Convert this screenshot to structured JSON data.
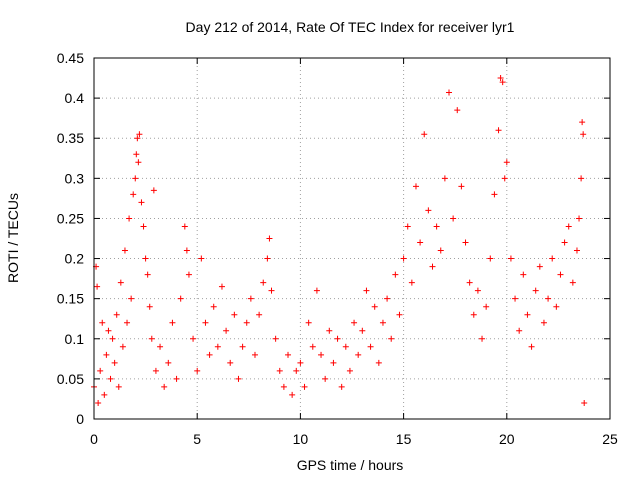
{
  "chart_data": {
    "type": "scatter",
    "title": "Day 212 of 2014, Rate Of TEC Index for receiver lyr1",
    "xlabel": "GPS time / hours",
    "ylabel": "ROTI / TECUs",
    "xlim": [
      0,
      25
    ],
    "ylim": [
      0,
      0.45
    ],
    "xticks": [
      "0",
      "5",
      "10",
      "15",
      "20",
      "25"
    ],
    "yticks": [
      "0",
      "0.05",
      "0.1",
      "0.15",
      "0.2",
      "0.25",
      "0.3",
      "0.35",
      "0.4",
      "0.45"
    ],
    "grid": true,
    "marker": "+",
    "color": "#ff0000",
    "series": [
      {
        "points": [
          [
            0.0,
            0.04
          ],
          [
            0.1,
            0.19
          ],
          [
            0.15,
            0.165
          ],
          [
            0.2,
            0.02
          ],
          [
            0.3,
            0.06
          ],
          [
            0.4,
            0.12
          ],
          [
            0.5,
            0.03
          ],
          [
            0.6,
            0.08
          ],
          [
            0.7,
            0.11
          ],
          [
            0.8,
            0.05
          ],
          [
            0.9,
            0.1
          ],
          [
            1.0,
            0.07
          ],
          [
            1.1,
            0.13
          ],
          [
            1.2,
            0.04
          ],
          [
            1.3,
            0.17
          ],
          [
            1.4,
            0.09
          ],
          [
            1.5,
            0.21
          ],
          [
            1.6,
            0.12
          ],
          [
            1.7,
            0.25
          ],
          [
            1.8,
            0.15
          ],
          [
            1.9,
            0.28
          ],
          [
            2.0,
            0.3
          ],
          [
            2.05,
            0.33
          ],
          [
            2.1,
            0.35
          ],
          [
            2.15,
            0.32
          ],
          [
            2.2,
            0.355
          ],
          [
            2.3,
            0.27
          ],
          [
            2.4,
            0.24
          ],
          [
            2.5,
            0.2
          ],
          [
            2.6,
            0.18
          ],
          [
            2.7,
            0.14
          ],
          [
            2.8,
            0.1
          ],
          [
            2.9,
            0.285
          ],
          [
            3.0,
            0.06
          ],
          [
            3.2,
            0.09
          ],
          [
            3.4,
            0.04
          ],
          [
            3.6,
            0.07
          ],
          [
            3.8,
            0.12
          ],
          [
            4.0,
            0.05
          ],
          [
            4.2,
            0.15
          ],
          [
            4.4,
            0.24
          ],
          [
            4.5,
            0.21
          ],
          [
            4.6,
            0.18
          ],
          [
            4.8,
            0.1
          ],
          [
            5.0,
            0.06
          ],
          [
            5.2,
            0.2
          ],
          [
            5.4,
            0.12
          ],
          [
            5.6,
            0.08
          ],
          [
            5.8,
            0.14
          ],
          [
            6.0,
            0.09
          ],
          [
            6.2,
            0.165
          ],
          [
            6.4,
            0.11
          ],
          [
            6.6,
            0.07
          ],
          [
            6.8,
            0.13
          ],
          [
            7.0,
            0.05
          ],
          [
            7.2,
            0.09
          ],
          [
            7.4,
            0.12
          ],
          [
            7.6,
            0.15
          ],
          [
            7.8,
            0.08
          ],
          [
            8.0,
            0.13
          ],
          [
            8.2,
            0.17
          ],
          [
            8.4,
            0.2
          ],
          [
            8.5,
            0.225
          ],
          [
            8.6,
            0.16
          ],
          [
            8.8,
            0.1
          ],
          [
            9.0,
            0.06
          ],
          [
            9.2,
            0.04
          ],
          [
            9.4,
            0.08
          ],
          [
            9.6,
            0.03
          ],
          [
            9.8,
            0.06
          ],
          [
            10.0,
            0.07
          ],
          [
            10.2,
            0.04
          ],
          [
            10.4,
            0.12
          ],
          [
            10.6,
            0.09
          ],
          [
            10.8,
            0.16
          ],
          [
            11.0,
            0.08
          ],
          [
            11.2,
            0.05
          ],
          [
            11.4,
            0.11
          ],
          [
            11.6,
            0.07
          ],
          [
            11.8,
            0.1
          ],
          [
            12.0,
            0.04
          ],
          [
            12.2,
            0.09
          ],
          [
            12.4,
            0.06
          ],
          [
            12.6,
            0.12
          ],
          [
            12.8,
            0.08
          ],
          [
            13.0,
            0.11
          ],
          [
            13.2,
            0.16
          ],
          [
            13.4,
            0.09
          ],
          [
            13.6,
            0.14
          ],
          [
            13.8,
            0.07
          ],
          [
            14.0,
            0.12
          ],
          [
            14.2,
            0.15
          ],
          [
            14.4,
            0.1
          ],
          [
            14.6,
            0.18
          ],
          [
            14.8,
            0.13
          ],
          [
            15.0,
            0.2
          ],
          [
            15.2,
            0.24
          ],
          [
            15.4,
            0.17
          ],
          [
            15.6,
            0.29
          ],
          [
            15.8,
            0.22
          ],
          [
            16.0,
            0.355
          ],
          [
            16.2,
            0.26
          ],
          [
            16.4,
            0.19
          ],
          [
            16.6,
            0.24
          ],
          [
            16.8,
            0.21
          ],
          [
            17.0,
            0.3
          ],
          [
            17.2,
            0.407
          ],
          [
            17.4,
            0.25
          ],
          [
            17.6,
            0.385
          ],
          [
            17.8,
            0.29
          ],
          [
            18.0,
            0.22
          ],
          [
            18.2,
            0.17
          ],
          [
            18.4,
            0.13
          ],
          [
            18.6,
            0.16
          ],
          [
            18.8,
            0.1
          ],
          [
            19.0,
            0.14
          ],
          [
            19.2,
            0.2
          ],
          [
            19.4,
            0.28
          ],
          [
            19.6,
            0.36
          ],
          [
            19.7,
            0.425
          ],
          [
            19.8,
            0.42
          ],
          [
            19.9,
            0.3
          ],
          [
            20.0,
            0.32
          ],
          [
            20.2,
            0.2
          ],
          [
            20.4,
            0.15
          ],
          [
            20.6,
            0.11
          ],
          [
            20.8,
            0.18
          ],
          [
            21.0,
            0.13
          ],
          [
            21.2,
            0.09
          ],
          [
            21.4,
            0.16
          ],
          [
            21.6,
            0.19
          ],
          [
            21.8,
            0.12
          ],
          [
            22.0,
            0.15
          ],
          [
            22.2,
            0.2
          ],
          [
            22.4,
            0.14
          ],
          [
            22.6,
            0.18
          ],
          [
            22.8,
            0.22
          ],
          [
            23.0,
            0.24
          ],
          [
            23.2,
            0.17
          ],
          [
            23.4,
            0.21
          ],
          [
            23.5,
            0.25
          ],
          [
            23.6,
            0.3
          ],
          [
            23.65,
            0.37
          ],
          [
            23.7,
            0.355
          ],
          [
            23.75,
            0.02
          ]
        ]
      }
    ]
  }
}
